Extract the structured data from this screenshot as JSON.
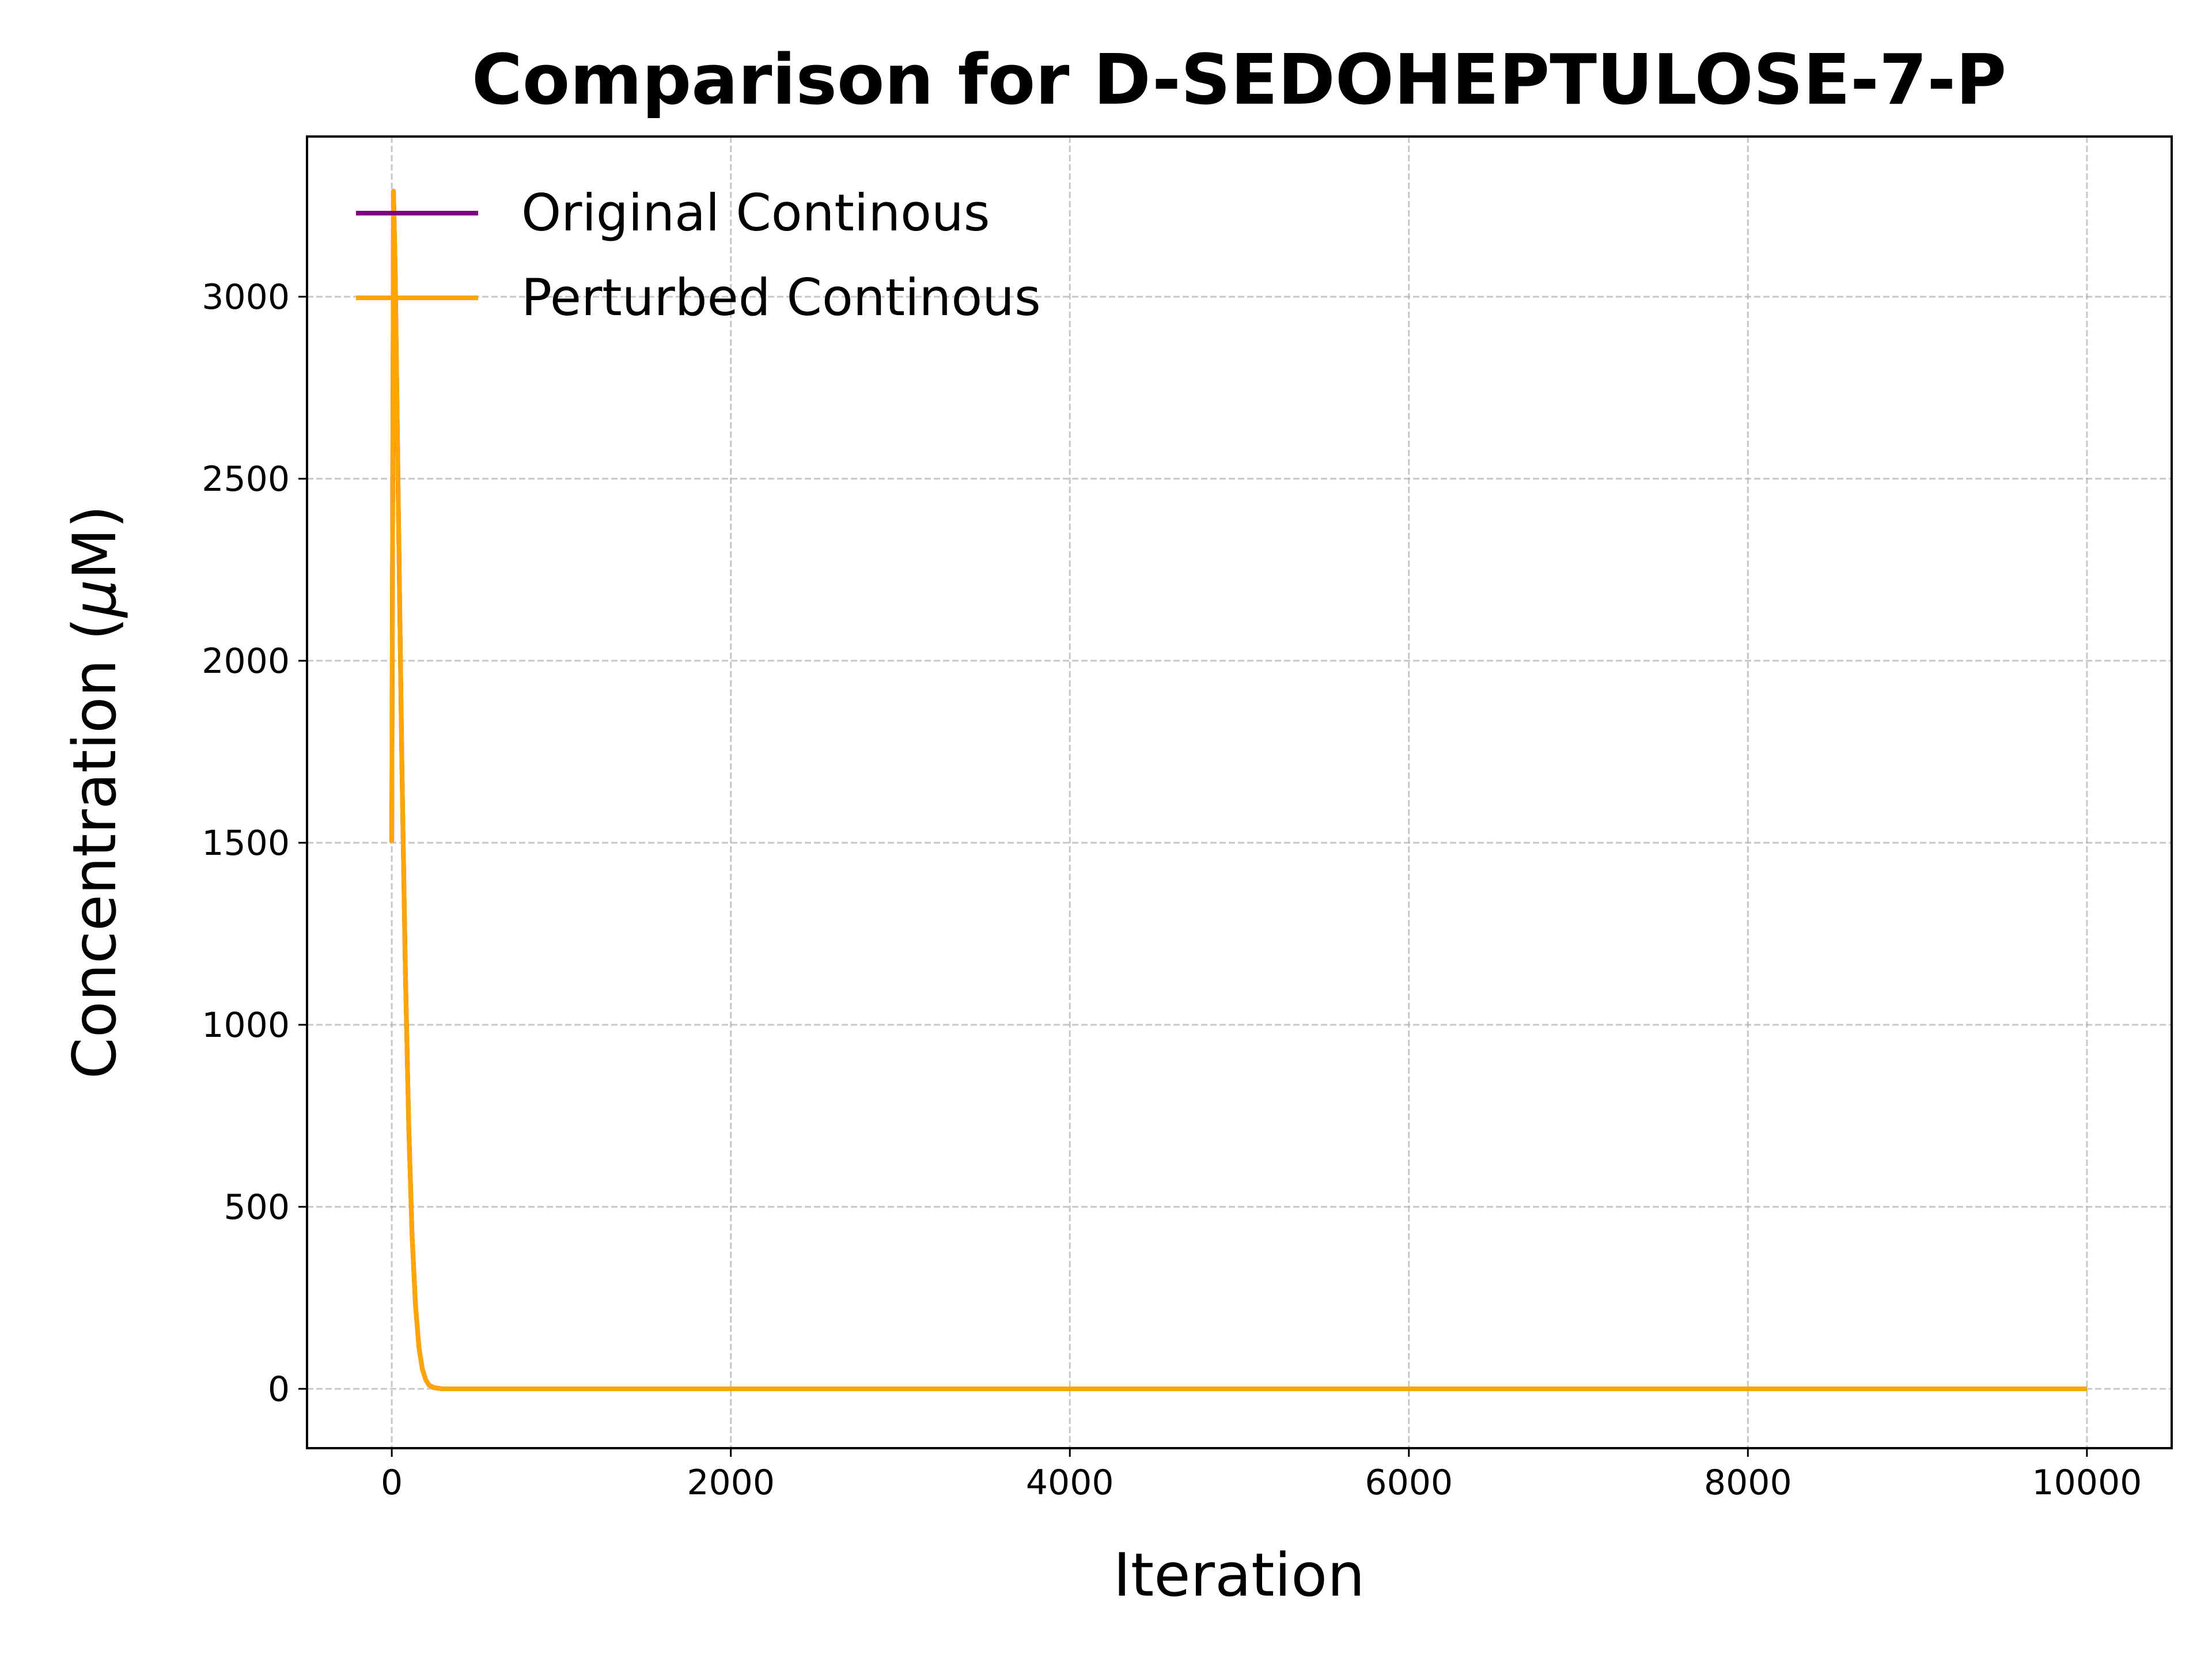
{
  "chart_data": {
    "type": "line",
    "title": "Comparison for D-SEDOHEPTULOSE-7-P",
    "xlabel": "Iteration",
    "ylabel_prefix": "Concentration (",
    "ylabel_mu": "μ",
    "ylabel_suffix": "M)",
    "xlim": [
      -500,
      10500
    ],
    "ylim": [
      -163,
      3440
    ],
    "xticks": [
      0,
      2000,
      4000,
      6000,
      8000,
      10000
    ],
    "yticks": [
      0,
      500,
      1000,
      1500,
      2000,
      2500,
      3000
    ],
    "xtick_labels": [
      "0",
      "2000",
      "4000",
      "6000",
      "8000",
      "10000"
    ],
    "ytick_labels": [
      "0",
      "500",
      "1000",
      "1500",
      "2000",
      "2500",
      "3000"
    ],
    "grid": true,
    "legend_position": "top-left",
    "series": [
      {
        "name": "Original Continous",
        "color": "#800080",
        "x": [
          0,
          10,
          20,
          30,
          40,
          60,
          80,
          100,
          120,
          140,
          160,
          180,
          200,
          220,
          250,
          300,
          500,
          1000,
          2000,
          4000,
          6000,
          8000,
          10000
        ],
        "y": [
          1500,
          3290,
          3080,
          2730,
          2380,
          1700,
          1150,
          720,
          420,
          230,
          115,
          55,
          25,
          10,
          3,
          0,
          0,
          0,
          0,
          0,
          0,
          0,
          0
        ]
      },
      {
        "name": "Perturbed Continous",
        "color": "#FFA500",
        "x": [
          0,
          10,
          20,
          30,
          40,
          60,
          80,
          100,
          120,
          140,
          160,
          180,
          200,
          220,
          250,
          300,
          500,
          1000,
          2000,
          4000,
          6000,
          8000,
          10000
        ],
        "y": [
          1500,
          3290,
          3080,
          2730,
          2380,
          1700,
          1150,
          720,
          420,
          230,
          115,
          55,
          25,
          10,
          3,
          0,
          0,
          0,
          0,
          0,
          0,
          0,
          0
        ]
      }
    ]
  }
}
